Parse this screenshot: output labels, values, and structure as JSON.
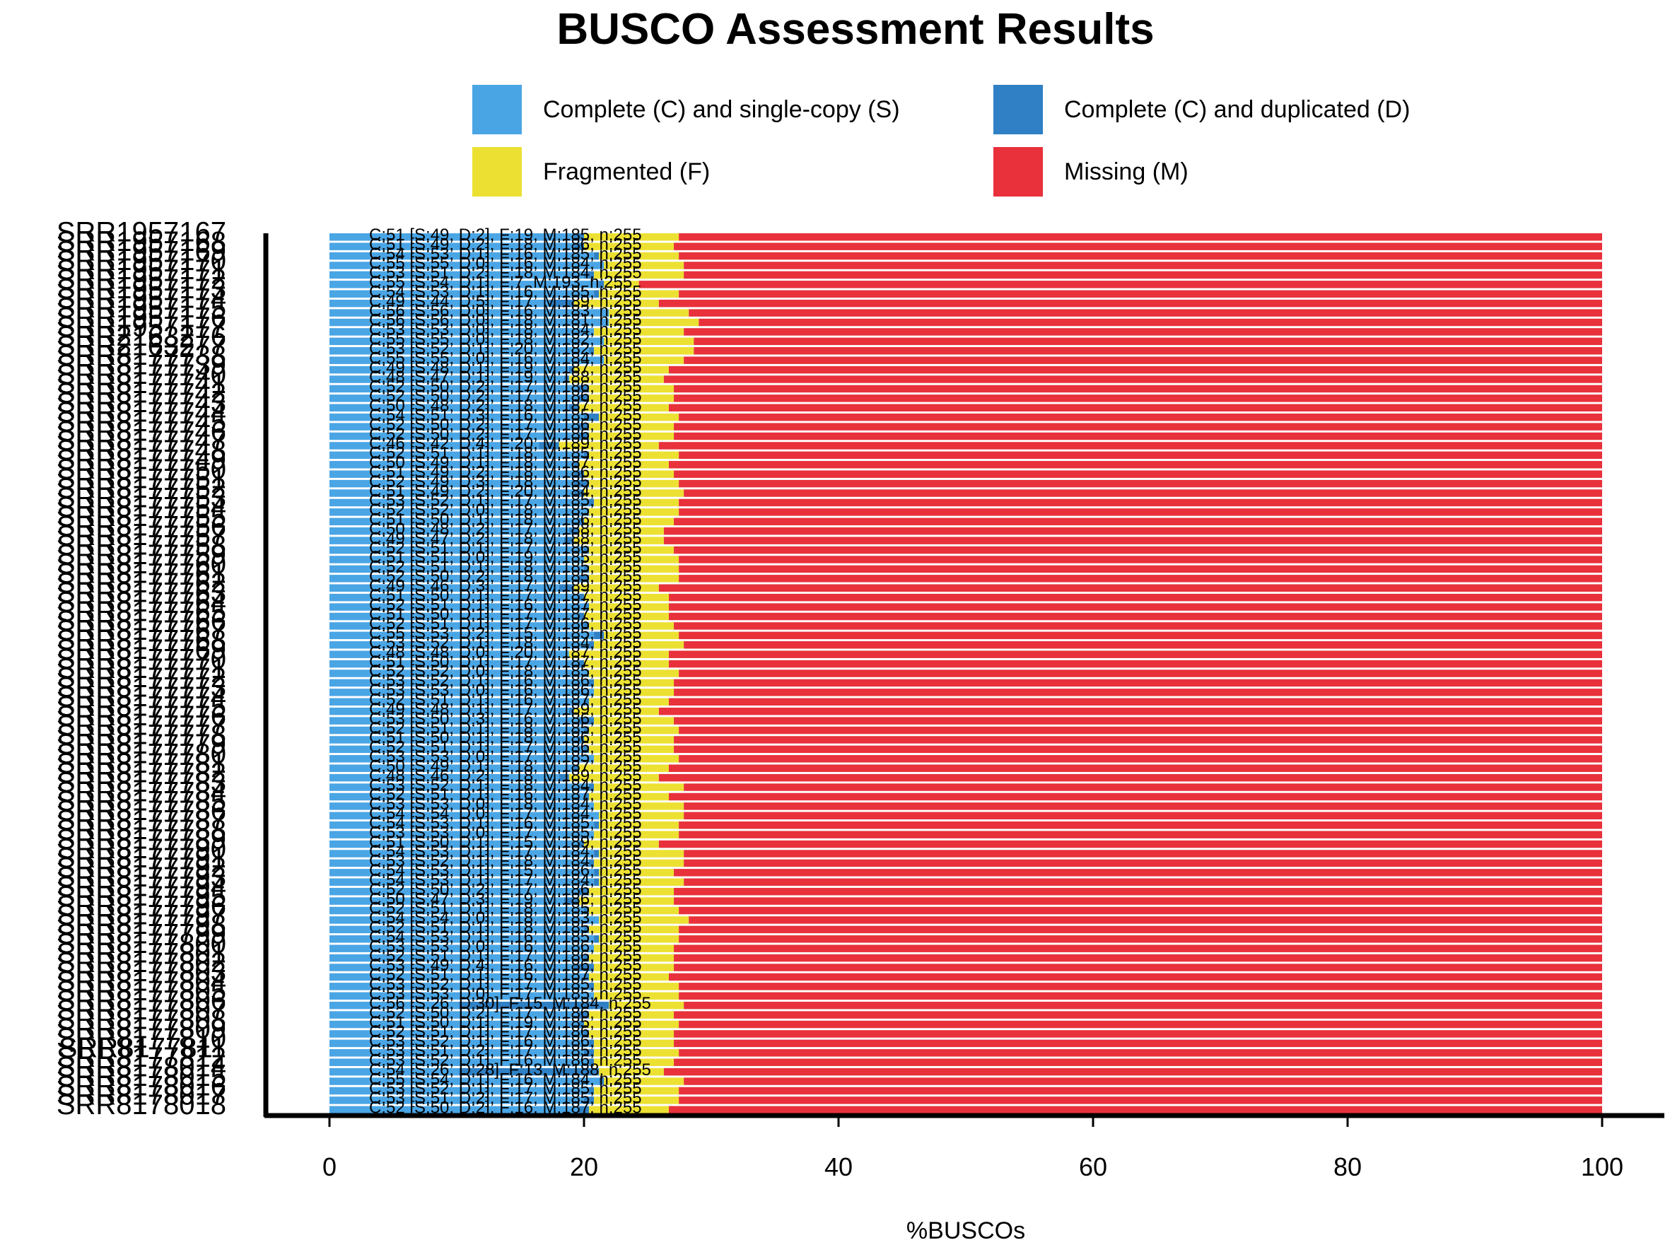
{
  "chart_data": {
    "type": "bar",
    "stacked": true,
    "orientation": "horizontal",
    "title": "BUSCO Assessment Results",
    "xlabel": "%BUSCOs",
    "ylabel": "",
    "xlim": [
      0,
      100
    ],
    "xticks": [
      0,
      20,
      40,
      60,
      80,
      100
    ],
    "grid": false,
    "legend_position": "top",
    "colors": {
      "S": "#4aa5e5",
      "D": "#2f80c4",
      "F": "#ece132",
      "M": "#e8313b"
    },
    "legend": [
      {
        "key": "S",
        "label": "Complete (C) and single-copy (S)"
      },
      {
        "key": "D",
        "label": "Complete (C) and duplicated (D)"
      },
      {
        "key": "F",
        "label": "Fragmented (F)"
      },
      {
        "key": "M",
        "label": "Missing (M)"
      }
    ],
    "total_n": 255,
    "categories": [
      "SRR1957167",
      "SRR1957168",
      "SRR1957169",
      "SRR1957170",
      "SRR1957171",
      "SRR1957172",
      "SRR1957173",
      "SRR1957174",
      "SRR1957175",
      "SRR1957176",
      "SRR1957177",
      "SRR2163276",
      "SRR2163277",
      "SRR8177738",
      "SRR8177739",
      "SRR8177740",
      "SRR8177741",
      "SRR8177742",
      "SRR8177743",
      "SRR8177744",
      "SRR8177745",
      "SRR8177746",
      "SRR8177747",
      "SRR8177748",
      "SRR8177749",
      "SRR8177750",
      "SRR8177751",
      "SRR8177752",
      "SRR8177753",
      "SRR8177754",
      "SRR8177755",
      "SRR8177756",
      "SRR8177757",
      "SRR8177758",
      "SRR8177759",
      "SRR8177760",
      "SRR8177761",
      "SRR8177762",
      "SRR8177763",
      "SRR8177764",
      "SRR8177765",
      "SRR8177766",
      "SRR8177767",
      "SRR8177768",
      "SRR8177769",
      "SRR8177770",
      "SRR8177771",
      "SRR8177772",
      "SRR8177773",
      "SRR8177774",
      "SRR8177775",
      "SRR8177776",
      "SRR8177777",
      "SRR8177778",
      "SRR8177779",
      "SRR8177780",
      "SRR8177781",
      "SRR8177782",
      "SRR8177783",
      "SRR8177784",
      "SRR8177785",
      "SRR8177786",
      "SRR8177787",
      "SRR8177788",
      "SRR8177789",
      "SRR8177790",
      "SRR8177791",
      "SRR8177792",
      "SRR8177793",
      "SRR8177794",
      "SRR8177795",
      "SRR8177796",
      "SRR8177797",
      "SRR8177798",
      "SRR8177799",
      "SRR8177800",
      "SRR8177801",
      "SRR8177802",
      "SRR8177803",
      "SRR8177804",
      "SRR8177805",
      "SRR8177806",
      "SRR8177807",
      "SRR8177808",
      "SRR8177809",
      "SRR8177810",
      "SRR8177811",
      "SRR8177812",
      "SRR8178014",
      "SRR8178015",
      "SRR8178016",
      "SRR8178017",
      "SRR8178018"
    ],
    "rows": [
      {
        "C": 51,
        "S": 49,
        "D": 2,
        "F": 19,
        "M": 185
      },
      {
        "C": 51,
        "S": 49,
        "D": 2,
        "F": 18,
        "M": 186
      },
      {
        "C": 54,
        "S": 53,
        "D": 1,
        "F": 16,
        "M": 185
      },
      {
        "C": 55,
        "S": 55,
        "D": 0,
        "F": 16,
        "M": 184
      },
      {
        "C": 53,
        "S": 51,
        "D": 2,
        "F": 18,
        "M": 184
      },
      {
        "C": 55,
        "S": 54,
        "D": 1,
        "F": 7,
        "M": 193
      },
      {
        "C": 54,
        "S": 53,
        "D": 1,
        "F": 16,
        "M": 185
      },
      {
        "C": 49,
        "S": 44,
        "D": 5,
        "F": 17,
        "M": 189
      },
      {
        "C": 56,
        "S": 56,
        "D": 0,
        "F": 16,
        "M": 183
      },
      {
        "C": 56,
        "S": 56,
        "D": 0,
        "F": 18,
        "M": 181
      },
      {
        "C": 53,
        "S": 53,
        "D": 0,
        "F": 18,
        "M": 184
      },
      {
        "C": 55,
        "S": 55,
        "D": 0,
        "F": 18,
        "M": 182
      },
      {
        "C": 53,
        "S": 52,
        "D": 1,
        "F": 20,
        "M": 182
      },
      {
        "C": 55,
        "S": 55,
        "D": 0,
        "F": 16,
        "M": 184
      },
      {
        "C": 49,
        "S": 48,
        "D": 1,
        "F": 19,
        "M": 187
      },
      {
        "C": 48,
        "S": 47,
        "D": 1,
        "F": 19,
        "M": 188
      },
      {
        "C": 52,
        "S": 50,
        "D": 2,
        "F": 17,
        "M": 186
      },
      {
        "C": 52,
        "S": 50,
        "D": 2,
        "F": 17,
        "M": 186
      },
      {
        "C": 50,
        "S": 48,
        "D": 2,
        "F": 18,
        "M": 187
      },
      {
        "C": 54,
        "S": 51,
        "D": 3,
        "F": 16,
        "M": 185
      },
      {
        "C": 52,
        "S": 50,
        "D": 2,
        "F": 17,
        "M": 186
      },
      {
        "C": 52,
        "S": 50,
        "D": 2,
        "F": 17,
        "M": 186
      },
      {
        "C": 46,
        "S": 42,
        "D": 4,
        "F": 20,
        "M": 189
      },
      {
        "C": 52,
        "S": 51,
        "D": 1,
        "F": 18,
        "M": 185
      },
      {
        "C": 50,
        "S": 49,
        "D": 1,
        "F": 18,
        "M": 187
      },
      {
        "C": 51,
        "S": 49,
        "D": 2,
        "F": 18,
        "M": 186
      },
      {
        "C": 52,
        "S": 49,
        "D": 3,
        "F": 18,
        "M": 185
      },
      {
        "C": 51,
        "S": 49,
        "D": 2,
        "F": 20,
        "M": 184
      },
      {
        "C": 53,
        "S": 52,
        "D": 1,
        "F": 17,
        "M": 185
      },
      {
        "C": 52,
        "S": 52,
        "D": 0,
        "F": 18,
        "M": 185
      },
      {
        "C": 51,
        "S": 50,
        "D": 1,
        "F": 18,
        "M": 186
      },
      {
        "C": 50,
        "S": 48,
        "D": 2,
        "F": 17,
        "M": 188
      },
      {
        "C": 49,
        "S": 47,
        "D": 2,
        "F": 18,
        "M": 188
      },
      {
        "C": 52,
        "S": 51,
        "D": 1,
        "F": 17,
        "M": 186
      },
      {
        "C": 51,
        "S": 51,
        "D": 0,
        "F": 19,
        "M": 185
      },
      {
        "C": 52,
        "S": 51,
        "D": 1,
        "F": 18,
        "M": 185
      },
      {
        "C": 52,
        "S": 50,
        "D": 2,
        "F": 18,
        "M": 185
      },
      {
        "C": 49,
        "S": 46,
        "D": 3,
        "F": 17,
        "M": 189
      },
      {
        "C": 51,
        "S": 50,
        "D": 1,
        "F": 17,
        "M": 187
      },
      {
        "C": 52,
        "S": 51,
        "D": 1,
        "F": 16,
        "M": 187
      },
      {
        "C": 51,
        "S": 50,
        "D": 1,
        "F": 17,
        "M": 187
      },
      {
        "C": 52,
        "S": 51,
        "D": 1,
        "F": 17,
        "M": 186
      },
      {
        "C": 55,
        "S": 53,
        "D": 2,
        "F": 15,
        "M": 185
      },
      {
        "C": 53,
        "S": 52,
        "D": 1,
        "F": 18,
        "M": 184
      },
      {
        "C": 48,
        "S": 48,
        "D": 0,
        "F": 20,
        "M": 187
      },
      {
        "C": 51,
        "S": 50,
        "D": 1,
        "F": 17,
        "M": 187
      },
      {
        "C": 52,
        "S": 52,
        "D": 0,
        "F": 18,
        "M": 185
      },
      {
        "C": 53,
        "S": 52,
        "D": 1,
        "F": 16,
        "M": 186
      },
      {
        "C": 53,
        "S": 53,
        "D": 0,
        "F": 16,
        "M": 186
      },
      {
        "C": 52,
        "S": 51,
        "D": 1,
        "F": 16,
        "M": 187
      },
      {
        "C": 49,
        "S": 48,
        "D": 1,
        "F": 17,
        "M": 189
      },
      {
        "C": 53,
        "S": 50,
        "D": 3,
        "F": 16,
        "M": 186
      },
      {
        "C": 52,
        "S": 51,
        "D": 1,
        "F": 18,
        "M": 185
      },
      {
        "C": 51,
        "S": 50,
        "D": 1,
        "F": 18,
        "M": 186
      },
      {
        "C": 52,
        "S": 51,
        "D": 1,
        "F": 17,
        "M": 186
      },
      {
        "C": 53,
        "S": 53,
        "D": 0,
        "F": 17,
        "M": 185
      },
      {
        "C": 50,
        "S": 49,
        "D": 1,
        "F": 18,
        "M": 187
      },
      {
        "C": 48,
        "S": 46,
        "D": 2,
        "F": 18,
        "M": 189
      },
      {
        "C": 53,
        "S": 52,
        "D": 1,
        "F": 18,
        "M": 184
      },
      {
        "C": 52,
        "S": 51,
        "D": 1,
        "F": 16,
        "M": 187
      },
      {
        "C": 53,
        "S": 53,
        "D": 0,
        "F": 18,
        "M": 184
      },
      {
        "C": 54,
        "S": 54,
        "D": 0,
        "F": 17,
        "M": 184
      },
      {
        "C": 54,
        "S": 53,
        "D": 1,
        "F": 16,
        "M": 185
      },
      {
        "C": 53,
        "S": 53,
        "D": 0,
        "F": 17,
        "M": 185
      },
      {
        "C": 51,
        "S": 50,
        "D": 1,
        "F": 15,
        "M": 189
      },
      {
        "C": 54,
        "S": 53,
        "D": 1,
        "F": 17,
        "M": 184
      },
      {
        "C": 53,
        "S": 52,
        "D": 1,
        "F": 18,
        "M": 184
      },
      {
        "C": 54,
        "S": 53,
        "D": 1,
        "F": 15,
        "M": 186
      },
      {
        "C": 54,
        "S": 53,
        "D": 1,
        "F": 17,
        "M": 184
      },
      {
        "C": 52,
        "S": 50,
        "D": 2,
        "F": 17,
        "M": 186
      },
      {
        "C": 50,
        "S": 47,
        "D": 3,
        "F": 19,
        "M": 186
      },
      {
        "C": 52,
        "S": 51,
        "D": 1,
        "F": 18,
        "M": 185
      },
      {
        "C": 54,
        "S": 54,
        "D": 0,
        "F": 18,
        "M": 183
      },
      {
        "C": 52,
        "S": 51,
        "D": 1,
        "F": 18,
        "M": 185
      },
      {
        "C": 54,
        "S": 53,
        "D": 1,
        "F": 16,
        "M": 185
      },
      {
        "C": 53,
        "S": 53,
        "D": 0,
        "F": 16,
        "M": 186
      },
      {
        "C": 52,
        "S": 51,
        "D": 1,
        "F": 17,
        "M": 186
      },
      {
        "C": 53,
        "S": 49,
        "D": 4,
        "F": 16,
        "M": 186
      },
      {
        "C": 52,
        "S": 51,
        "D": 1,
        "F": 16,
        "M": 187
      },
      {
        "C": 53,
        "S": 52,
        "D": 1,
        "F": 17,
        "M": 185
      },
      {
        "C": 53,
        "S": 53,
        "D": 0,
        "F": 17,
        "M": 185
      },
      {
        "C": 56,
        "S": 26,
        "D": 30,
        "F": 15,
        "M": 184
      },
      {
        "C": 52,
        "S": 50,
        "D": 2,
        "F": 17,
        "M": 186
      },
      {
        "C": 51,
        "S": 50,
        "D": 1,
        "F": 19,
        "M": 185
      },
      {
        "C": 52,
        "S": 51,
        "D": 1,
        "F": 17,
        "M": 186
      },
      {
        "C": 53,
        "S": 52,
        "D": 1,
        "F": 16,
        "M": 186
      },
      {
        "C": 53,
        "S": 51,
        "D": 2,
        "F": 17,
        "M": 185
      },
      {
        "C": 53,
        "S": 52,
        "D": 1,
        "F": 16,
        "M": 186
      },
      {
        "C": 54,
        "S": 26,
        "D": 28,
        "F": 13,
        "M": 188
      },
      {
        "C": 55,
        "S": 54,
        "D": 1,
        "F": 16,
        "M": 184
      },
      {
        "C": 53,
        "S": 52,
        "D": 1,
        "F": 17,
        "M": 185
      },
      {
        "C": 53,
        "S": 51,
        "D": 2,
        "F": 17,
        "M": 185
      },
      {
        "C": 52,
        "S": 50,
        "D": 2,
        "F": 16,
        "M": 187
      }
    ]
  }
}
